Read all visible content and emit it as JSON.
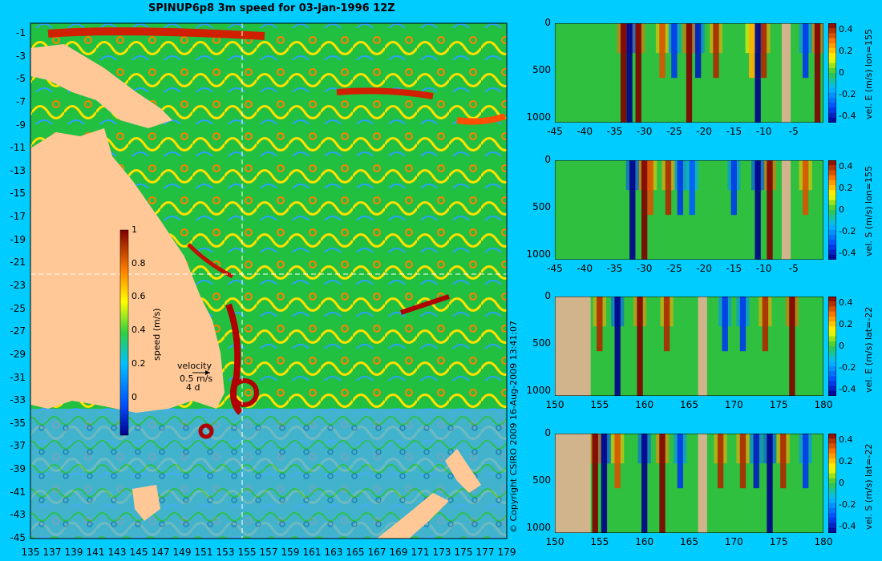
{
  "title": "SPINUP6p8 3m speed for 03-Jan-1996 12Z",
  "copyright": "© Copyright CSIRO 2009   16-Aug-2009 13:41:07",
  "map": {
    "lon_ticks": [
      "135",
      "137",
      "139",
      "141",
      "143",
      "145",
      "147",
      "149",
      "151",
      "153",
      "155",
      "157",
      "159",
      "161",
      "163",
      "165",
      "167",
      "169",
      "171",
      "173",
      "175",
      "177",
      "179"
    ],
    "lat_ticks": [
      "-1",
      "-3",
      "-5",
      "-7",
      "-9",
      "-11",
      "-13",
      "-15",
      "-17",
      "-19",
      "-21",
      "-23",
      "-25",
      "-27",
      "-29",
      "-31",
      "-33",
      "-35",
      "-37",
      "-39",
      "-41",
      "-43",
      "-45"
    ],
    "colorbar": {
      "label": "speed (m/s)",
      "ticks": [
        "1",
        "0.8",
        "0.6",
        "0.4",
        "0.2",
        "0"
      ]
    },
    "velocity_legend": {
      "title": "velocity",
      "scale": "0.5 m/s",
      "time": "4 d"
    },
    "section_lon": 155,
    "section_lat": -22
  },
  "chart_data": [
    {
      "type": "heatmap",
      "label": "vel. E (m/s) lon=155",
      "x_ticks": [
        "-45",
        "-40",
        "-35",
        "-30",
        "-25",
        "-20",
        "-15",
        "-10",
        "-5"
      ],
      "y_ticks": [
        "0",
        "500",
        "1000"
      ],
      "cb_ticks": [
        "0.4",
        "0.2",
        "0",
        "-0.2",
        "-0.4"
      ],
      "xlim": [
        -45,
        0
      ],
      "ylim": [
        1050,
        0
      ],
      "clim": [
        -0.4,
        0.4
      ],
      "land": [
        [
          -7,
          -5.5
        ]
      ],
      "bands": [
        [
          -33.5,
          0.45
        ],
        [
          -32.5,
          -0.45
        ],
        [
          -31,
          0.45
        ],
        [
          -27,
          0.3
        ],
        [
          -25,
          -0.3
        ],
        [
          -22.5,
          0.45
        ],
        [
          -21,
          -0.35
        ],
        [
          -18,
          0.35
        ],
        [
          -12,
          0.2
        ],
        [
          -11,
          -0.4
        ],
        [
          -10,
          0.35
        ],
        [
          -3,
          -0.3
        ],
        [
          -1,
          0.45
        ]
      ]
    },
    {
      "type": "heatmap",
      "label": "vel. S (m/s) lon=155",
      "x_ticks": [
        "-45",
        "-40",
        "-35",
        "-30",
        "-25",
        "-20",
        "-15",
        "-10",
        "-5"
      ],
      "y_ticks": [
        "0",
        "500",
        "1000"
      ],
      "cb_ticks": [
        "0.4",
        "0.2",
        "0",
        "-0.2",
        "-0.4"
      ],
      "xlim": [
        -45,
        0
      ],
      "ylim": [
        1050,
        0
      ],
      "clim": [
        -0.4,
        0.4
      ],
      "land": [
        [
          -7,
          -5.5
        ]
      ],
      "bands": [
        [
          -32,
          -0.45
        ],
        [
          -30,
          0.45
        ],
        [
          -29,
          0.3
        ],
        [
          -26,
          0.35
        ],
        [
          -24,
          -0.3
        ],
        [
          -22,
          -0.25
        ],
        [
          -15,
          -0.3
        ],
        [
          -11,
          -0.45
        ],
        [
          -9,
          0.45
        ],
        [
          -3,
          0.3
        ]
      ]
    },
    {
      "type": "heatmap",
      "label": "vel. E (m/s) lat=-22",
      "x_ticks": [
        "150",
        "155",
        "160",
        "165",
        "170",
        "175",
        "180"
      ],
      "y_ticks": [
        "0",
        "500",
        "1000"
      ],
      "cb_ticks": [
        "0.4",
        "0.2",
        "0",
        "-0.2",
        "-0.4"
      ],
      "xlim": [
        150,
        180
      ],
      "ylim": [
        1050,
        0
      ],
      "clim": [
        -0.4,
        0.4
      ],
      "land": [
        [
          150,
          154
        ],
        [
          166,
          167
        ]
      ],
      "bands": [
        [
          155,
          0.35
        ],
        [
          157,
          -0.4
        ],
        [
          159.5,
          0.4
        ],
        [
          162.5,
          0.35
        ],
        [
          169,
          -0.3
        ],
        [
          171,
          -0.3
        ],
        [
          173.5,
          0.35
        ],
        [
          176.5,
          0.45
        ]
      ]
    },
    {
      "type": "heatmap",
      "label": "vel. S (m/s) lat=-22",
      "x_ticks": [
        "150",
        "155",
        "160",
        "165",
        "170",
        "175",
        "180"
      ],
      "y_ticks": [
        "0",
        "500",
        "1000"
      ],
      "cb_ticks": [
        "0.4",
        "0.2",
        "0",
        "-0.2",
        "-0.4"
      ],
      "xlim": [
        150,
        180
      ],
      "ylim": [
        1050,
        0
      ],
      "clim": [
        -0.4,
        0.4
      ],
      "land": [
        [
          150,
          154
        ],
        [
          166,
          167
        ]
      ],
      "bands": [
        [
          154.5,
          0.45
        ],
        [
          155.5,
          -0.45
        ],
        [
          157,
          0.3
        ],
        [
          160,
          -0.4
        ],
        [
          162,
          0.4
        ],
        [
          164,
          -0.3
        ],
        [
          168.5,
          0.35
        ],
        [
          171,
          0.35
        ],
        [
          172.5,
          -0.35
        ],
        [
          174,
          -0.45
        ],
        [
          175.5,
          0.35
        ],
        [
          178,
          -0.3
        ]
      ]
    }
  ]
}
